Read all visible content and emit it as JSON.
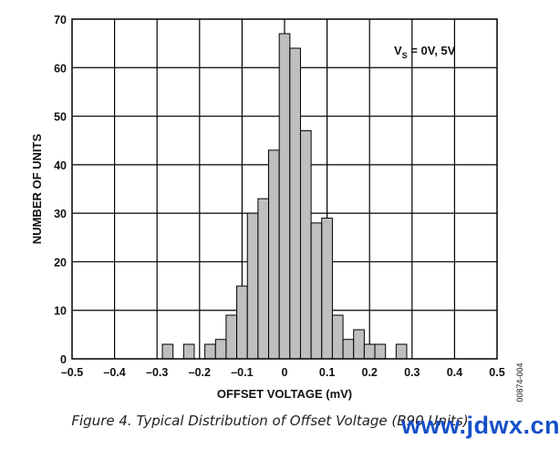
{
  "chart_data": {
    "type": "bar",
    "xlabel": "OFFSET VOLTAGE (mV)",
    "ylabel": "NUMBER OF UNITS",
    "xlim": [
      -0.5,
      0.5
    ],
    "ylim": [
      0,
      70
    ],
    "x_ticks": [
      "–0.5",
      "–0.4",
      "–0.3",
      "–0.2",
      "–0.1",
      "0",
      "0.1",
      "0.2",
      "0.3",
      "0.4",
      "0.5"
    ],
    "y_ticks": [
      "0",
      "10",
      "20",
      "30",
      "40",
      "50",
      "60",
      "70"
    ],
    "bin_width": 0.025,
    "bins": [
      {
        "x": -0.275,
        "count": 3
      },
      {
        "x": -0.225,
        "count": 3
      },
      {
        "x": -0.175,
        "count": 3
      },
      {
        "x": -0.15,
        "count": 4
      },
      {
        "x": -0.125,
        "count": 9
      },
      {
        "x": -0.1,
        "count": 15
      },
      {
        "x": -0.075,
        "count": 30
      },
      {
        "x": -0.05,
        "count": 33
      },
      {
        "x": -0.025,
        "count": 43
      },
      {
        "x": 0.0,
        "count": 67
      },
      {
        "x": 0.025,
        "count": 64
      },
      {
        "x": 0.05,
        "count": 47
      },
      {
        "x": 0.075,
        "count": 28
      },
      {
        "x": 0.1,
        "count": 29
      },
      {
        "x": 0.125,
        "count": 9
      },
      {
        "x": 0.15,
        "count": 4
      },
      {
        "x": 0.175,
        "count": 6
      },
      {
        "x": 0.2,
        "count": 3
      },
      {
        "x": 0.225,
        "count": 3
      },
      {
        "x": 0.275,
        "count": 3
      }
    ],
    "grid": true,
    "bar_color": "#bfbfbf",
    "annotation": {
      "prefix": "V",
      "subscript": "S",
      "suffix": " = 0V, 5V"
    },
    "figure_code": "00874-004"
  },
  "caption": "Figure 4. Typical Distribution of Offset Voltage (B90 Units)",
  "watermark": "www.jdwx.cn"
}
